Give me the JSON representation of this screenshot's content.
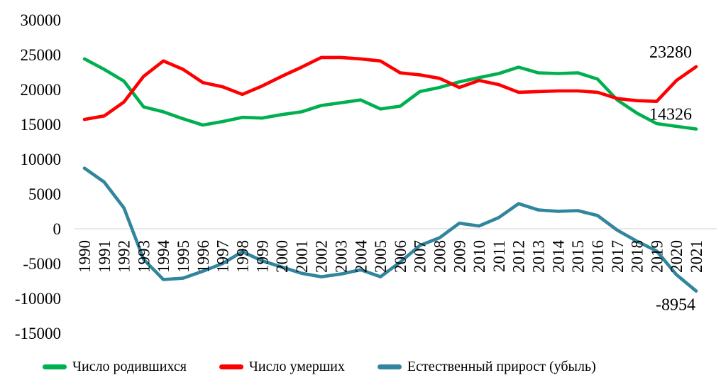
{
  "chart_data": {
    "type": "line",
    "title": "",
    "xlabel": "",
    "ylabel": "",
    "x": [
      1990,
      1991,
      1992,
      1993,
      1994,
      1995,
      1996,
      1997,
      1998,
      1999,
      2000,
      2001,
      2002,
      2003,
      2004,
      2005,
      2006,
      2007,
      2008,
      2009,
      2010,
      2011,
      2012,
      2013,
      2014,
      2015,
      2016,
      2017,
      2018,
      2019,
      2020,
      2021
    ],
    "ylim": [
      -15000,
      30000
    ],
    "yticks": [
      30000,
      25000,
      20000,
      15000,
      10000,
      5000,
      0,
      -5000,
      -10000,
      -15000
    ],
    "grid": "zero-baseline-only",
    "legend_position": "bottom",
    "series": [
      {
        "name": "Число родившихся",
        "color": "#00B050",
        "values": [
          24400,
          22900,
          21200,
          17500,
          16800,
          15800,
          14900,
          15400,
          16000,
          15900,
          16400,
          16800,
          17700,
          18100,
          18500,
          17200,
          17600,
          19700,
          20300,
          21100,
          21700,
          22300,
          23200,
          22400,
          22300,
          22400,
          21500,
          18500,
          16600,
          15100,
          14700,
          14326
        ]
      },
      {
        "name": "Число умерших",
        "color": "#FF0000",
        "values": [
          15700,
          16200,
          18200,
          21900,
          24100,
          22900,
          21000,
          20400,
          19300,
          20500,
          21900,
          23200,
          24600,
          24600,
          24400,
          24100,
          22400,
          22100,
          21600,
          20300,
          21300,
          20700,
          19600,
          19700,
          19800,
          19800,
          19600,
          18700,
          18400,
          18300,
          21300,
          23280
        ]
      },
      {
        "name": "Естественный прирост (убыль)",
        "color": "#31859C",
        "values": [
          8700,
          6700,
          3000,
          -4400,
          -7300,
          -7100,
          -6100,
          -5000,
          -3300,
          -4600,
          -5500,
          -6400,
          -6900,
          -6500,
          -5900,
          -6900,
          -4800,
          -2400,
          -1300,
          800,
          400,
          1600,
          3600,
          2700,
          2500,
          2600,
          1900,
          -200,
          -1800,
          -3200,
          -6600,
          -8954
        ]
      }
    ],
    "annotations": [
      {
        "text": "23280",
        "series_index": 1,
        "position": "above-end"
      },
      {
        "text": "14326",
        "series_index": 0,
        "position": "above-end"
      },
      {
        "text": "-8954",
        "series_index": 2,
        "position": "below-end"
      }
    ],
    "gridline_color": "#D9D9D9"
  }
}
